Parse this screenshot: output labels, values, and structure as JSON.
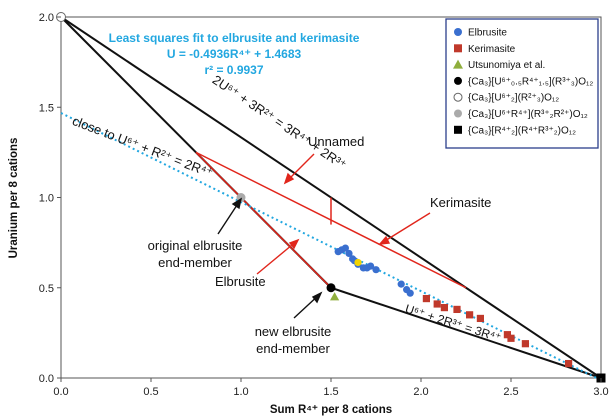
{
  "chart_data": {
    "type": "scatter",
    "xlabel": "Sum R⁴⁺ per 8 cations",
    "ylabel": "Uranium per 8 cations",
    "xlim": [
      0.0,
      3.0
    ],
    "ylim": [
      0.0,
      2.0
    ],
    "x_ticks": [
      "0.0",
      "0.5",
      "1.0",
      "1.5",
      "2.0",
      "2.5",
      "3.0"
    ],
    "y_ticks": [
      "0.0",
      "0.5",
      "1.0",
      "1.5",
      "2.0"
    ],
    "grid": false,
    "legend_position": "top-right",
    "fit": {
      "title": "Least squares fit to elbrusite and kerimasite",
      "equation": "U = -0.4936R⁴⁺ + 1.4683",
      "r2": "r² = 0.9937",
      "slope": -0.4936,
      "intercept": 1.4683,
      "x_range": [
        0.0,
        3.0
      ],
      "color": "#22a7e0"
    },
    "boundary_lines": [
      {
        "label": "2U⁶⁺ + 3R²⁺ = 3R⁴⁺ + 2R³⁺",
        "points": [
          [
            0.0,
            2.0
          ],
          [
            3.0,
            0.0
          ]
        ]
      },
      {
        "points": [
          [
            0.0,
            2.0
          ],
          [
            1.5,
            0.5
          ]
        ]
      },
      {
        "label": "U⁶⁺ + 2R³⁺ = 3R⁴⁺",
        "points": [
          [
            1.5,
            0.5
          ],
          [
            3.0,
            0.0
          ]
        ]
      }
    ],
    "red_lines": [
      {
        "points": [
          [
            0.75,
            1.25
          ],
          [
            1.5,
            0.5
          ]
        ]
      },
      {
        "points": [
          [
            0.75,
            1.25
          ],
          [
            2.25,
            0.5
          ]
        ]
      },
      {
        "points": [
          [
            1.5,
            1.0
          ],
          [
            1.5,
            0.85
          ]
        ]
      }
    ],
    "annotations": {
      "close_to": "close to U⁶⁺ + R²⁺ = 2R⁴⁺",
      "unnamed": "Unnamed",
      "kerimasite": "Kerimasite",
      "elbrusite": "Elbrusite",
      "original_line1": "original elbrusite",
      "original_line2": "end-member",
      "new_line1": "new elbrusite",
      "new_line2": "end-member"
    },
    "series": [
      {
        "name": "Elbrusite",
        "color": "#3a6fcf",
        "marker": "circle",
        "points": [
          [
            1.54,
            0.7
          ],
          [
            1.56,
            0.71
          ],
          [
            1.58,
            0.72
          ],
          [
            1.6,
            0.69
          ],
          [
            1.62,
            0.66
          ],
          [
            1.63,
            0.65
          ],
          [
            1.65,
            0.63
          ],
          [
            1.68,
            0.61
          ],
          [
            1.7,
            0.61
          ],
          [
            1.72,
            0.62
          ],
          [
            1.75,
            0.6
          ],
          [
            1.89,
            0.52
          ],
          [
            1.92,
            0.49
          ],
          [
            1.94,
            0.47
          ]
        ]
      },
      {
        "name": "Kerimasite",
        "color": "#c0392b",
        "marker": "square",
        "points": [
          [
            2.03,
            0.44
          ],
          [
            2.09,
            0.41
          ],
          [
            2.13,
            0.39
          ],
          [
            2.2,
            0.38
          ],
          [
            2.27,
            0.35
          ],
          [
            2.33,
            0.33
          ],
          [
            2.48,
            0.24
          ],
          [
            2.5,
            0.22
          ],
          [
            2.58,
            0.19
          ],
          [
            2.82,
            0.08
          ]
        ]
      },
      {
        "name": "Utsunomiya et al.",
        "color": "#8fae3c",
        "marker": "triangle",
        "points": [
          [
            1.52,
            0.45
          ]
        ]
      },
      {
        "name": "{Ca₃}[U⁶⁺₀.₅R⁴⁺₁.₅](R³⁺₃)O₁₂",
        "color": "#000000",
        "marker": "circle",
        "points": [
          [
            1.5,
            0.5
          ]
        ]
      },
      {
        "name": "{Ca₃}[U⁶⁺₂](R²⁺₃)O₁₂",
        "color": "#ffffff",
        "marker": "circle-open",
        "points": [
          [
            0.0,
            2.0
          ]
        ]
      },
      {
        "name": "{Ca₃}[U⁶⁺R⁴⁺](R³⁺₂R²⁺)O₁₂",
        "color": "#aaaaaa",
        "marker": "circle",
        "points": [
          [
            1.0,
            1.0
          ]
        ]
      },
      {
        "name": "{Ca₃}[R⁴⁺₂](R⁴⁺R³⁺₂)O₁₂",
        "color": "#000000",
        "marker": "square",
        "points": [
          [
            3.0,
            0.0
          ]
        ]
      }
    ],
    "highlight_point": {
      "x": 1.65,
      "y": 0.64,
      "color": "#f2d400"
    }
  }
}
